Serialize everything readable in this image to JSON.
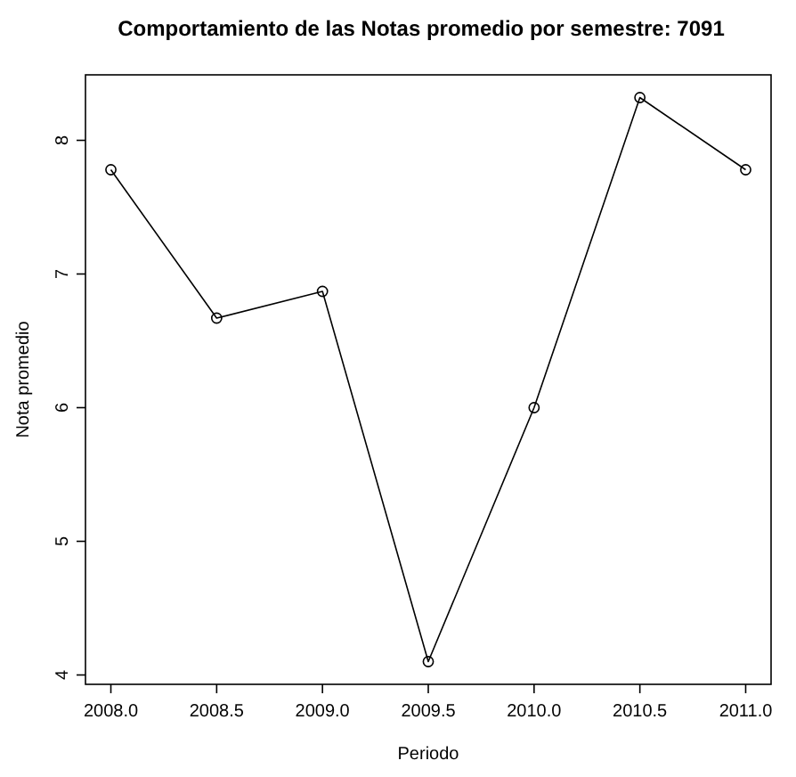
{
  "chart_data": {
    "type": "line",
    "title": "Comportamiento de las Notas promedio por semestre: 7091",
    "xlabel": "Periodo",
    "ylabel": "Nota promedio",
    "x": [
      2008.0,
      2008.5,
      2009.0,
      2009.5,
      2010.0,
      2010.5,
      2011.0
    ],
    "series": [
      {
        "color": "#000000",
        "values": [
          7.78,
          6.67,
          6.87,
          4.1,
          6.0,
          8.32,
          7.78
        ]
      }
    ],
    "xlim": [
      2007.88,
      2011.12
    ],
    "ylim": [
      3.93,
      8.49
    ],
    "xticks": [
      {
        "value": 2008,
        "label": "2008.0"
      },
      {
        "value": 2008.5,
        "label": "2008.5"
      },
      {
        "value": 2009,
        "label": "2009.0"
      },
      {
        "value": 2009.5,
        "label": "2009.5"
      },
      {
        "value": 2010,
        "label": "2010.0"
      },
      {
        "value": 2010.5,
        "label": "2010.5"
      },
      {
        "value": 2011,
        "label": "2011.0"
      }
    ],
    "yticks": [
      4,
      5,
      6,
      7,
      8
    ],
    "marker": "circle",
    "line_style": "solid",
    "grid": false
  }
}
